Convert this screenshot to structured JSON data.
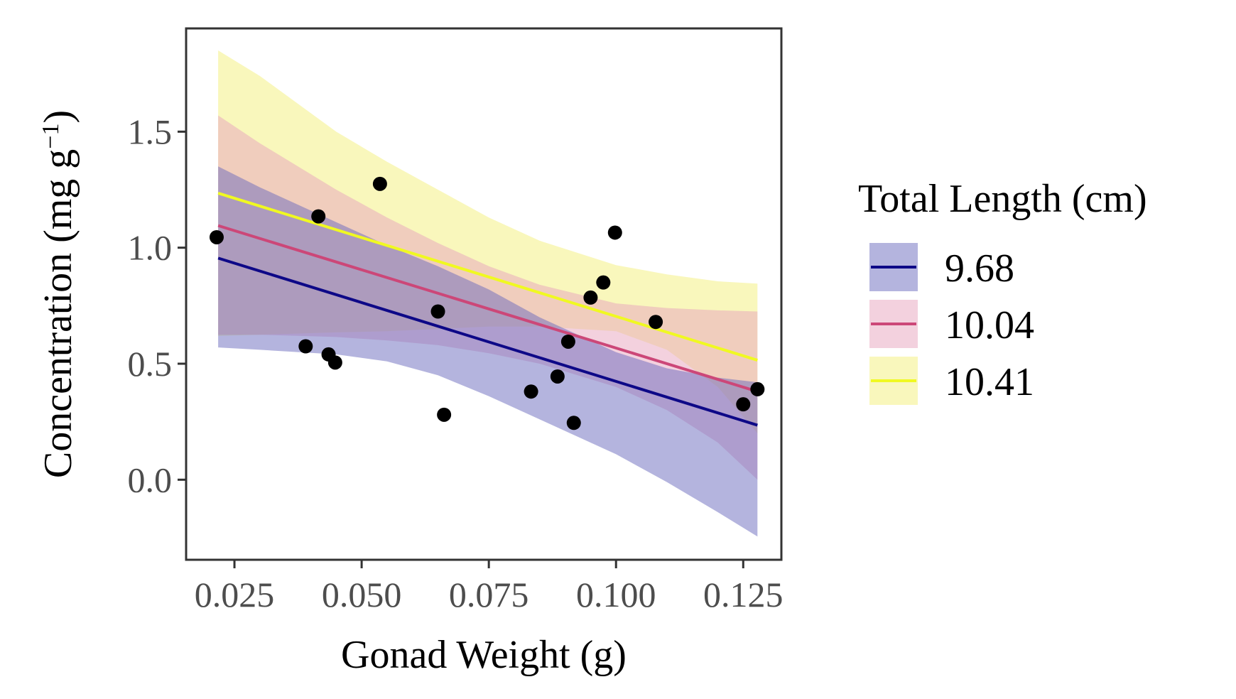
{
  "chart_data": {
    "type": "scatter",
    "xlabel": "Gonad Weight (g)",
    "ylabel": {
      "main": "Concentration (mg  g",
      "sup": "−1",
      "close": ")"
    },
    "xlim": [
      0.0155,
      0.1325
    ],
    "ylim": [
      -0.345,
      1.945
    ],
    "x_ticks": [
      0.025,
      0.05,
      0.075,
      0.1,
      0.125
    ],
    "x_tick_labels": [
      "0.025",
      "0.050",
      "0.075",
      "0.100",
      "0.125"
    ],
    "y_ticks": [
      0.0,
      0.5,
      1.0,
      1.5
    ],
    "y_tick_labels": [
      "0.0",
      "0.5",
      "1.0",
      "1.5"
    ],
    "grid": false,
    "legend": {
      "title": "Total Length (cm)",
      "position": "right",
      "entries": [
        "9.68",
        "10.04",
        "10.41"
      ]
    },
    "points": [
      {
        "x": 0.0215,
        "y": 1.045
      },
      {
        "x": 0.039,
        "y": 0.575
      },
      {
        "x": 0.0415,
        "y": 1.135
      },
      {
        "x": 0.0435,
        "y": 0.54
      },
      {
        "x": 0.0448,
        "y": 0.505
      },
      {
        "x": 0.0536,
        "y": 1.275
      },
      {
        "x": 0.065,
        "y": 0.725
      },
      {
        "x": 0.0662,
        "y": 0.28
      },
      {
        "x": 0.0833,
        "y": 0.38
      },
      {
        "x": 0.0885,
        "y": 0.445
      },
      {
        "x": 0.0906,
        "y": 0.595
      },
      {
        "x": 0.0917,
        "y": 0.245
      },
      {
        "x": 0.095,
        "y": 0.785
      },
      {
        "x": 0.0975,
        "y": 0.85
      },
      {
        "x": 0.0998,
        "y": 1.065
      },
      {
        "x": 0.1078,
        "y": 0.68
      },
      {
        "x": 0.125,
        "y": 0.325
      },
      {
        "x": 0.1278,
        "y": 0.39
      }
    ],
    "series": [
      {
        "name": "9.68",
        "color": "#0d0887",
        "fill": "#6a6abd",
        "line": [
          [
            0.0218,
            0.955
          ],
          [
            0.1278,
            0.235
          ]
        ],
        "band_x": [
          0.0218,
          0.03,
          0.045,
          0.055,
          0.065,
          0.075,
          0.085,
          0.1,
          0.11,
          0.12,
          0.1278
        ],
        "band_upper": [
          1.35,
          1.26,
          1.11,
          1.01,
          0.92,
          0.82,
          0.7,
          0.55,
          0.48,
          0.44,
          0.42
        ],
        "band_lower": [
          0.57,
          0.56,
          0.54,
          0.51,
          0.45,
          0.36,
          0.26,
          0.11,
          -0.01,
          -0.14,
          -0.245
        ]
      },
      {
        "name": "10.04",
        "color": "#cc4778",
        "fill": "#e7a3be",
        "line": [
          [
            0.0218,
            1.095
          ],
          [
            0.1278,
            0.38
          ]
        ],
        "band_x": [
          0.0218,
          0.03,
          0.045,
          0.055,
          0.065,
          0.075,
          0.085,
          0.1,
          0.11,
          0.12,
          0.1278
        ],
        "band_upper": [
          1.57,
          1.45,
          1.25,
          1.13,
          1.02,
          0.92,
          0.84,
          0.76,
          0.74,
          0.73,
          0.725
        ],
        "band_lower": [
          0.625,
          0.625,
          0.615,
          0.6,
          0.58,
          0.545,
          0.5,
          0.4,
          0.3,
          0.16,
          0.0
        ]
      },
      {
        "name": "10.41",
        "color": "#f0f921",
        "fill": "#f3f07a",
        "line": [
          [
            0.0218,
            1.235
          ],
          [
            0.1278,
            0.515
          ]
        ],
        "band_x": [
          0.0218,
          0.03,
          0.045,
          0.055,
          0.065,
          0.075,
          0.085,
          0.1,
          0.11,
          0.12,
          0.1278
        ],
        "band_upper": [
          1.85,
          1.74,
          1.5,
          1.37,
          1.25,
          1.13,
          1.03,
          0.925,
          0.885,
          0.855,
          0.845
        ],
        "band_lower": [
          0.62,
          0.625,
          0.635,
          0.64,
          0.65,
          0.66,
          0.66,
          0.64,
          0.56,
          0.4,
          0.2
        ]
      }
    ]
  }
}
